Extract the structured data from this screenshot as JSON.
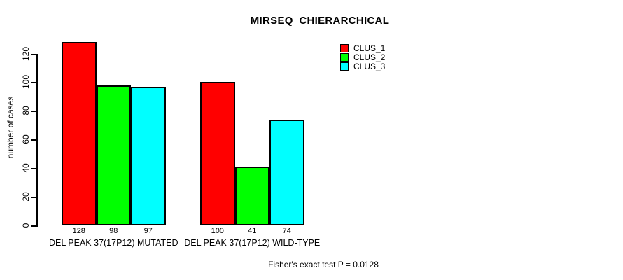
{
  "chart_data": {
    "type": "bar",
    "title": "MIRSEQ_CHIERARCHICAL",
    "xlabel": "",
    "ylabel": "number of cases",
    "categories": [
      "DEL PEAK 37(17P12) MUTATED",
      "DEL PEAK 37(17P12) WILD-TYPE"
    ],
    "series": [
      {
        "name": "CLUS_1",
        "color": "#FF0000",
        "values": [
          128,
          100
        ]
      },
      {
        "name": "CLUS_2",
        "color": "#00FF00",
        "values": [
          98,
          41
        ]
      },
      {
        "name": "CLUS_3",
        "color": "#00FFFF",
        "values": [
          97,
          74
        ]
      }
    ],
    "bar_value_labels": [
      [
        128,
        98,
        97
      ],
      [
        100,
        41,
        74
      ]
    ],
    "yticks": [
      0,
      20,
      40,
      60,
      80,
      100,
      120
    ],
    "ylim": [
      0,
      130
    ],
    "grid": false,
    "legend_position": "top-right",
    "annotation": "Fisher's exact test P = 0.0128"
  },
  "colors": {
    "background": "#FFFFFF",
    "axis": "#000000",
    "bar_border": "#000000",
    "clus_1": "#FF0000",
    "clus_2": "#00FF00",
    "clus_3": "#00FFFF"
  }
}
